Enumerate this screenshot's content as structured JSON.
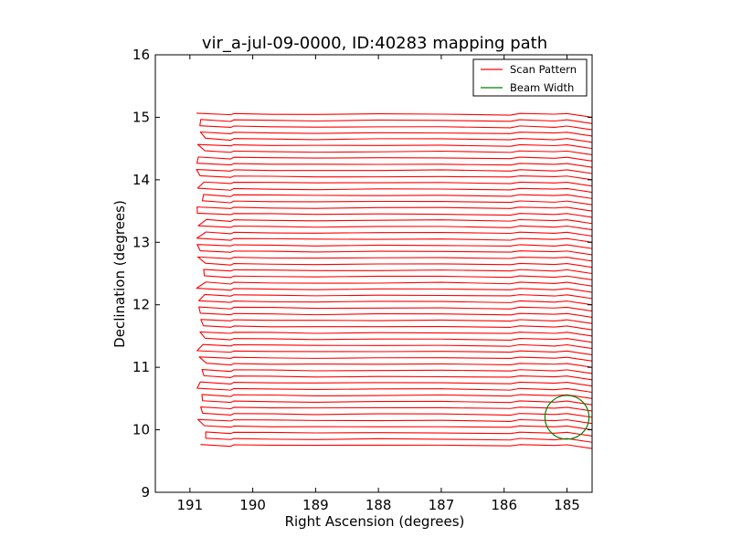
{
  "chart_data": {
    "type": "line",
    "title": "vir_a-jul-09-0000, ID:40283 mapping path",
    "xlabel": "Right Ascension (degrees)",
    "ylabel": "Declination (degrees)",
    "xlim": [
      191.55,
      184.6
    ],
    "ylim": [
      9,
      16
    ],
    "x_reversed": true,
    "xticks": [
      191,
      190,
      189,
      188,
      187,
      186,
      185
    ],
    "yticks": [
      9,
      10,
      11,
      12,
      13,
      14,
      15,
      16
    ],
    "grid": false,
    "legend_position": "upper-right",
    "series": [
      {
        "name": "Scan Pattern",
        "color": "#ff0000",
        "dec_start": 9.75,
        "dec_end": 15.02,
        "row_spacing": 0.1,
        "ra_left": 190.8,
        "ra_right": 184.6
      },
      {
        "name": "Beam Width",
        "color": "#008000",
        "center": [
          185.0,
          10.2
        ],
        "radius": 0.35
      }
    ]
  }
}
